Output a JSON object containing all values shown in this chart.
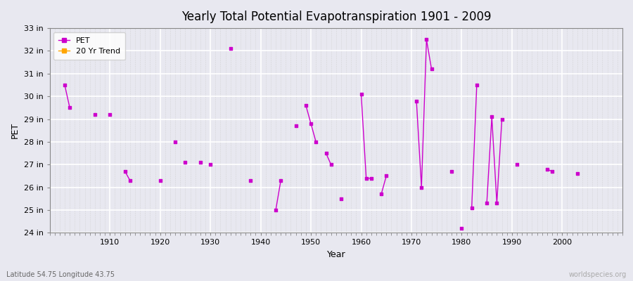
{
  "title": "Yearly Total Potential Evapotranspiration 1901 - 2009",
  "xlabel": "Year",
  "ylabel": "PET",
  "bottom_left_label": "Latitude 54.75 Longitude 43.75",
  "bottom_right_label": "worldspecies.org",
  "ylim": [
    24,
    33
  ],
  "ytick_labels": [
    "24 in",
    "25 in",
    "26 in",
    "27 in",
    "28 in",
    "29 in",
    "30 in",
    "31 in",
    "32 in",
    "33 in"
  ],
  "ytick_values": [
    24,
    25,
    26,
    27,
    28,
    29,
    30,
    31,
    32,
    33
  ],
  "pet_color": "#CC00CC",
  "trend_color": "#FFA500",
  "bg_color": "#E8E8F0",
  "legend_entries": [
    "PET",
    "20 Yr Trend"
  ],
  "years": [
    1901,
    1902,
    1903,
    1904,
    1905,
    1906,
    1907,
    1908,
    1909,
    1910,
    1911,
    1912,
    1913,
    1914,
    1915,
    1916,
    1917,
    1918,
    1919,
    1920,
    1921,
    1922,
    1923,
    1924,
    1925,
    1926,
    1927,
    1928,
    1929,
    1930,
    1931,
    1932,
    1933,
    1934,
    1935,
    1936,
    1937,
    1938,
    1939,
    1940,
    1941,
    1942,
    1943,
    1944,
    1945,
    1946,
    1947,
    1948,
    1949,
    1950,
    1951,
    1952,
    1953,
    1954,
    1955,
    1956,
    1957,
    1958,
    1959,
    1960,
    1961,
    1962,
    1963,
    1964,
    1965,
    1966,
    1967,
    1968,
    1969,
    1970,
    1971,
    1972,
    1973,
    1974,
    1975,
    1976,
    1977,
    1978,
    1979,
    1980,
    1981,
    1982,
    1983,
    1984,
    1985,
    1986,
    1987,
    1988,
    1989,
    1990,
    1991,
    1992,
    1993,
    1994,
    1995,
    1996,
    1997,
    1998,
    1999,
    2000,
    2001,
    2002,
    2003,
    2004,
    2005,
    2006,
    2007,
    2008,
    2009
  ],
  "pet_values": [
    30.5,
    29.5,
    null,
    null,
    null,
    null,
    29.2,
    null,
    null,
    29.2,
    null,
    null,
    26.7,
    26.3,
    null,
    null,
    null,
    null,
    null,
    26.3,
    null,
    null,
    28.0,
    null,
    27.1,
    null,
    null,
    27.1,
    null,
    27.0,
    null,
    null,
    null,
    32.1,
    null,
    null,
    null,
    26.3,
    null,
    null,
    null,
    null,
    25.0,
    26.3,
    null,
    null,
    28.7,
    null,
    29.6,
    28.8,
    28.0,
    null,
    27.5,
    27.0,
    null,
    25.5,
    null,
    null,
    null,
    30.1,
    26.4,
    26.4,
    null,
    25.7,
    26.5,
    null,
    null,
    null,
    null,
    null,
    29.8,
    26.0,
    32.5,
    31.2,
    null,
    null,
    null,
    26.7,
    null,
    24.2,
    null,
    25.1,
    30.5,
    null,
    25.3,
    29.1,
    25.3,
    29.0,
    null,
    null,
    27.0,
    null,
    null,
    null,
    null,
    null,
    26.8,
    26.7,
    null,
    null,
    null,
    null,
    26.6,
    null,
    null,
    null,
    null,
    null,
    null
  ],
  "xlim": [
    1898,
    2012
  ],
  "xtick_values": [
    1910,
    1920,
    1930,
    1940,
    1950,
    1960,
    1970,
    1980,
    1990,
    2000
  ],
  "xtick_labels": [
    "1910",
    "1920",
    "1930",
    "1940",
    "1950",
    "1960",
    "1970",
    "1980",
    "1990",
    "2000"
  ]
}
